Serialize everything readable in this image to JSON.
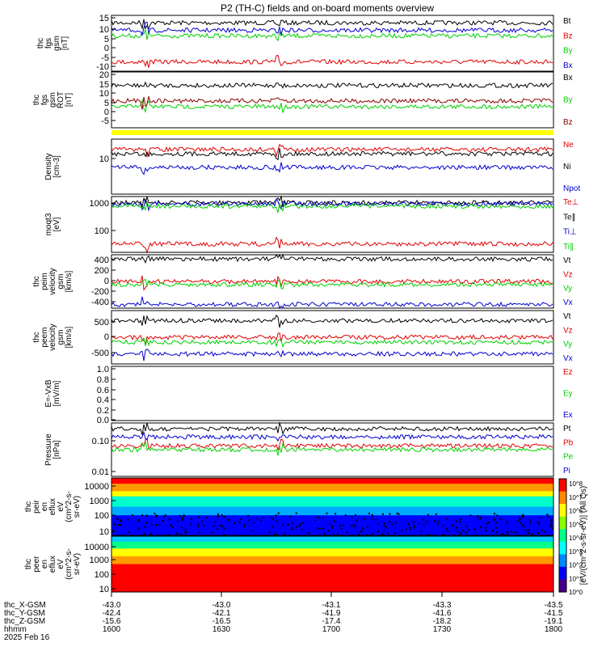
{
  "title": "P2 (TH-C) fields and on-board moments overview",
  "colors": {
    "black": "#000000",
    "red": "#e00000",
    "green": "#00d000",
    "blue": "#0000d0",
    "maroon": "#8b0000",
    "yellow": "#ffff00"
  },
  "chart_data": [
    {
      "type": "line",
      "panel": "fgs_gsm",
      "ylabel": [
        "thc",
        "fgs",
        "gsm",
        "[nT]"
      ],
      "yticks": [
        "15",
        "10",
        "5",
        "0",
        "-5",
        "-10"
      ],
      "ylim": [
        -12,
        18
      ],
      "series": [
        {
          "name": "Bt",
          "color": "black",
          "level": 14
        },
        {
          "name": "Bz",
          "color": "red",
          "level": -7
        },
        {
          "name": "By",
          "color": "green",
          "level": 7
        },
        {
          "name": "Bx",
          "color": "blue",
          "level": 10
        }
      ]
    },
    {
      "type": "line",
      "panel": "fgs_gsm_rot",
      "ylabel": [
        "thc",
        "fgs",
        "gsm",
        "ROT",
        "[nT]"
      ],
      "yticks": [
        "20",
        "15",
        "10",
        "5",
        "0",
        "-5"
      ],
      "ylim": [
        -8,
        21
      ],
      "series": [
        {
          "name": "Bx",
          "color": "black",
          "level": 14
        },
        {
          "name": "By",
          "color": "green",
          "level": 3
        },
        {
          "name": "Bz",
          "color": "maroon",
          "level": 6
        }
      ]
    },
    {
      "type": "line",
      "panel": "density",
      "ylabel": [
        "Density",
        "[cm-3]"
      ],
      "yticks": [
        "10"
      ],
      "ylim": [
        1,
        40
      ],
      "log": true,
      "series": [
        {
          "name": "Ne",
          "color": "red",
          "level": 20
        },
        {
          "name": "Ni",
          "color": "black",
          "level": 15
        },
        {
          "name": "Npot",
          "color": "blue",
          "level": 6
        }
      ]
    },
    {
      "type": "line",
      "panel": "temperature",
      "ylabel": [
        "moqt3",
        "[eV]"
      ],
      "yticks": [
        "1000",
        "100"
      ],
      "ylim": [
        20,
        2000
      ],
      "log": true,
      "series": [
        {
          "name": "Te⊥",
          "color": "red",
          "level": 40
        },
        {
          "name": "Te∥",
          "color": "black",
          "level": 1200
        },
        {
          "name": "Ti⊥",
          "color": "blue",
          "level": 1100
        },
        {
          "name": "Ti∥",
          "color": "green",
          "level": 900
        }
      ]
    },
    {
      "type": "line",
      "panel": "peim_velocity",
      "ylabel": [
        "thc",
        "peim",
        "velocity",
        "gsm",
        "[km/s]"
      ],
      "yticks": [
        "400",
        "200",
        "0",
        "-200",
        "-400"
      ],
      "ylim": [
        -500,
        500
      ],
      "series": [
        {
          "name": "Vt",
          "color": "black",
          "level": 420
        },
        {
          "name": "Vz",
          "color": "red",
          "level": 0
        },
        {
          "name": "Vy",
          "color": "green",
          "level": -60
        },
        {
          "name": "Vx",
          "color": "blue",
          "level": -430
        }
      ]
    },
    {
      "type": "line",
      "panel": "peem_velocity",
      "ylabel": [
        "thc",
        "peem",
        "velocity",
        "gsm",
        "[km/s]"
      ],
      "yticks": [
        "500",
        "0",
        "-500"
      ],
      "ylim": [
        -800,
        800
      ],
      "series": [
        {
          "name": "Vt",
          "color": "black",
          "level": 500
        },
        {
          "name": "Vz",
          "color": "red",
          "level": 0
        },
        {
          "name": "Vy",
          "color": "green",
          "level": -150
        },
        {
          "name": "Vx",
          "color": "blue",
          "level": -500
        }
      ]
    },
    {
      "type": "line",
      "panel": "efield",
      "ylabel": [
        "E=-VxB",
        "[mV/m]"
      ],
      "yticks": [
        "1.0",
        "0.8",
        "0.6",
        "0.4",
        "0.2",
        "0.0"
      ],
      "ylim": [
        -0.05,
        1.0
      ],
      "series": [
        {
          "name": "Ez",
          "color": "red"
        },
        {
          "name": "Ey",
          "color": "green"
        },
        {
          "name": "Ex",
          "color": "blue"
        }
      ]
    },
    {
      "type": "line",
      "panel": "pressure",
      "ylabel": [
        "Pressure",
        "[nPa]"
      ],
      "yticks": [
        "0.10",
        "0.01"
      ],
      "ylim": [
        0.005,
        0.5
      ],
      "log": true,
      "series": [
        {
          "name": "Pt",
          "color": "black",
          "level": 0.3
        },
        {
          "name": "Pb",
          "color": "red",
          "level": 0.07
        },
        {
          "name": "Pe",
          "color": "green",
          "level": 0.05
        },
        {
          "name": "Pi",
          "color": "blue",
          "level": 0.15
        }
      ]
    },
    {
      "type": "heatmap",
      "panel": "peir_spectrogram",
      "ylabel": [
        "thc",
        "peir",
        "en",
        "eflux",
        "eV",
        "(cm^2-s-",
        "sr-eV)"
      ],
      "yticks": [
        "10000",
        "1000",
        "100",
        "10"
      ]
    },
    {
      "type": "heatmap",
      "panel": "peer_spectrogram",
      "ylabel": [
        "thc",
        "peer",
        "en",
        "eflux",
        "eV",
        "(cm^2-s-",
        "sr-eV)"
      ],
      "yticks": [
        "10000",
        "1000",
        "100",
        "10"
      ]
    }
  ],
  "colorbar": {
    "label": "[eV/(cm^2-s-sr-eV)] (All Qs)",
    "ticks": [
      "10^8",
      "10^7",
      "10^6",
      "10^5",
      "10^4",
      "10^3",
      "10^2",
      "10^1",
      "10^0"
    ]
  },
  "xaxis": {
    "rows": [
      {
        "label": "thc_X-GSM",
        "values": [
          "-43.0",
          "-43.0",
          "-43.1",
          "-43.3",
          "-43.5"
        ]
      },
      {
        "label": "thc_Y-GSM",
        "values": [
          "-42.4",
          "-42.1",
          "-41.9",
          "-41.6",
          "-41.5"
        ]
      },
      {
        "label": "thc_Z-GSM",
        "values": [
          "-15.6",
          "-16.5",
          "-17.4",
          "-18.2",
          "-19.1"
        ]
      },
      {
        "label": "hhmm",
        "values": [
          "1600",
          "1630",
          "1700",
          "1730",
          "1800"
        ]
      }
    ],
    "date": "2025 Feb 16"
  }
}
